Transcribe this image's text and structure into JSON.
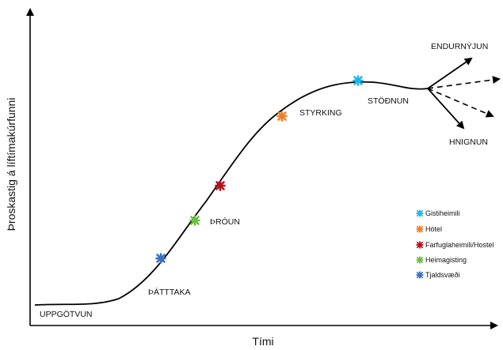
{
  "axes": {
    "x_label": "Tími",
    "y_label": "Þroskastig á líftímakúrfunni"
  },
  "stages": {
    "uppgotvun": "UPPGÖTVUN",
    "thatttaka": "ÞÁTTTAKA",
    "throun": "ÞRÓUN",
    "styrking": "STYRKING",
    "stodnun": "STÖÐNUN",
    "endurnyjun": "ENDURNÝJUN",
    "hnignun": "HNIGNUN"
  },
  "legend": [
    {
      "label": "Gistiheimili",
      "color": "#1fb5e8",
      "icon": "asterisk-marker"
    },
    {
      "label": "Hótel",
      "color": "#f07f2a",
      "icon": "asterisk-marker"
    },
    {
      "label": "Farfuglaheimili/Hostel",
      "color": "#b5121b",
      "icon": "asterisk-marker"
    },
    {
      "label": "Heimagisting",
      "color": "#6dbb45",
      "icon": "asterisk-marker"
    },
    {
      "label": "Tjaldsvæði",
      "color": "#3a6fc4",
      "icon": "asterisk-marker"
    }
  ],
  "colors": {
    "line": "#000000"
  }
}
